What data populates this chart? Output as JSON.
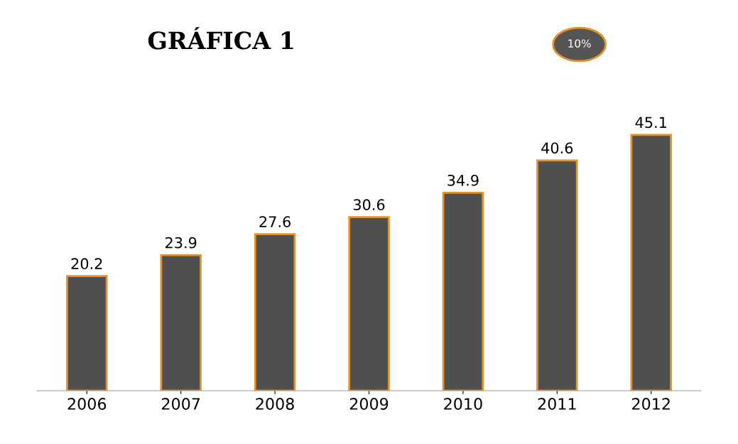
{
  "chart_data": {
    "type": "bar",
    "title": "GRÁFICA 1",
    "categories": [
      "2006",
      "2007",
      "2008",
      "2009",
      "2010",
      "2011",
      "2012"
    ],
    "values": [
      20.2,
      23.9,
      27.6,
      30.6,
      34.9,
      40.6,
      45.1
    ],
    "color": "#4f4f4f",
    "data_labels": true,
    "annotations": [
      "10%"
    ],
    "grid": false,
    "legend": false
  }
}
